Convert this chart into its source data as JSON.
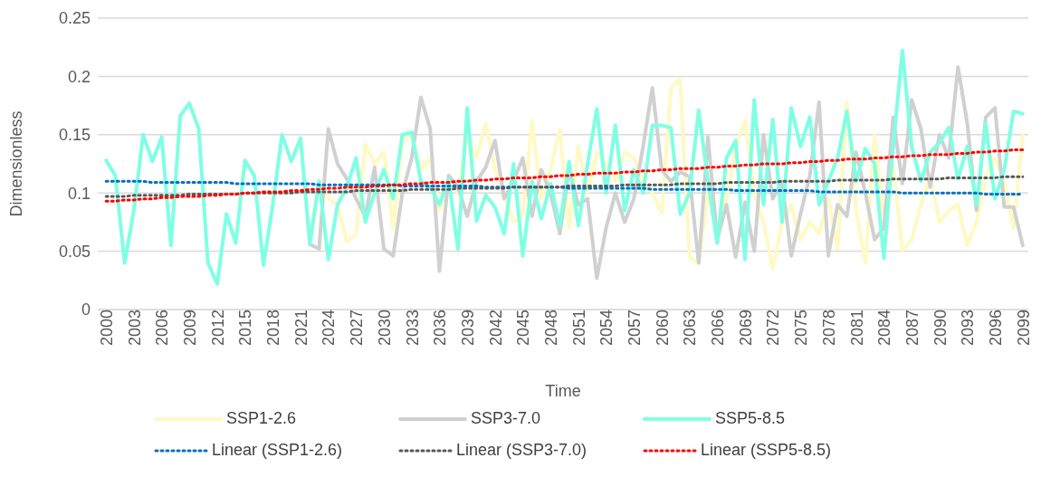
{
  "chart_data": {
    "type": "line",
    "xlabel": "Time",
    "ylabel": "Dimensionless",
    "x": [
      2000,
      2001,
      2002,
      2003,
      2004,
      2005,
      2006,
      2007,
      2008,
      2009,
      2010,
      2011,
      2012,
      2013,
      2014,
      2015,
      2016,
      2017,
      2018,
      2019,
      2020,
      2021,
      2022,
      2023,
      2024,
      2025,
      2026,
      2027,
      2028,
      2029,
      2030,
      2031,
      2032,
      2033,
      2034,
      2035,
      2036,
      2037,
      2038,
      2039,
      2040,
      2041,
      2042,
      2043,
      2044,
      2045,
      2046,
      2047,
      2048,
      2049,
      2050,
      2051,
      2052,
      2053,
      2054,
      2055,
      2056,
      2057,
      2058,
      2059,
      2060,
      2061,
      2062,
      2063,
      2064,
      2065,
      2066,
      2067,
      2068,
      2069,
      2070,
      2071,
      2072,
      2073,
      2074,
      2075,
      2076,
      2077,
      2078,
      2079,
      2080,
      2081,
      2082,
      2083,
      2084,
      2085,
      2086,
      2087,
      2088,
      2089,
      2090,
      2091,
      2092,
      2093,
      2094,
      2095,
      2096,
      2097,
      2098,
      2099
    ],
    "xlim": [
      1999.1,
      2099.6
    ],
    "xticks": [
      2000,
      2003,
      2006,
      2009,
      2012,
      2015,
      2018,
      2021,
      2024,
      2027,
      2030,
      2033,
      2036,
      2039,
      2042,
      2045,
      2048,
      2051,
      2054,
      2057,
      2060,
      2063,
      2066,
      2069,
      2072,
      2075,
      2078,
      2081,
      2084,
      2087,
      2090,
      2093,
      2096,
      2099
    ],
    "ylim": [
      0,
      0.25
    ],
    "yticks": [
      0,
      0.05,
      0.1,
      0.15,
      0.2,
      0.25
    ],
    "grid": "y",
    "legend": "bottom",
    "marker": "none",
    "series": [
      {
        "name": "SSP1-2.6",
        "color": "#fff9c4",
        "line_style": "solid",
        "values": [
          null,
          null,
          null,
          null,
          null,
          null,
          null,
          null,
          null,
          null,
          null,
          null,
          null,
          null,
          null,
          null,
          null,
          null,
          null,
          null,
          null,
          null,
          0.056,
          0.11,
          0.095,
          0.09,
          0.058,
          0.065,
          0.142,
          0.125,
          0.135,
          0.07,
          0.145,
          0.15,
          0.12,
          0.13,
          0.085,
          0.11,
          0.1,
          0.15,
          0.13,
          0.16,
          0.12,
          0.1,
          0.075,
          0.08,
          0.162,
          0.095,
          0.12,
          0.155,
          0.07,
          0.14,
          0.1,
          0.135,
          0.125,
          0.11,
          0.135,
          0.13,
          0.11,
          0.1,
          0.083,
          0.19,
          0.198,
          0.045,
          0.04,
          0.1,
          0.068,
          0.095,
          0.14,
          0.162,
          0.1,
          0.075,
          0.035,
          0.075,
          0.09,
          0.06,
          0.075,
          0.065,
          0.095,
          0.052,
          0.178,
          0.085,
          0.04,
          0.15,
          0.08,
          0.125,
          0.05,
          0.06,
          0.09,
          0.115,
          0.075,
          0.085,
          0.09,
          0.055,
          0.075,
          0.115,
          0.13,
          0.11,
          0.07,
          0.15
        ]
      },
      {
        "name": "SSP3-7.0",
        "color": "#d0d0d0",
        "line_style": "solid",
        "values": [
          null,
          null,
          null,
          null,
          null,
          null,
          null,
          null,
          null,
          null,
          null,
          null,
          null,
          null,
          null,
          null,
          null,
          null,
          null,
          null,
          null,
          null,
          0.056,
          0.052,
          0.155,
          0.125,
          0.112,
          0.095,
          0.08,
          0.122,
          0.052,
          0.046,
          0.1,
          0.13,
          0.182,
          0.155,
          0.033,
          0.115,
          0.105,
          0.08,
          0.11,
          0.122,
          0.145,
          0.095,
          0.11,
          0.13,
          0.08,
          0.12,
          0.1,
          0.065,
          0.12,
          0.09,
          0.095,
          0.027,
          0.07,
          0.1,
          0.075,
          0.095,
          0.14,
          0.19,
          0.12,
          0.11,
          0.118,
          0.114,
          0.04,
          0.148,
          0.06,
          0.09,
          0.045,
          0.092,
          0.05,
          0.15,
          0.095,
          0.11,
          0.046,
          0.082,
          0.115,
          0.178,
          0.046,
          0.09,
          0.08,
          0.135,
          0.1,
          0.06,
          0.07,
          0.165,
          0.108,
          0.18,
          0.155,
          0.105,
          0.15,
          0.13,
          0.208,
          0.16,
          0.085,
          0.165,
          0.173,
          0.088,
          0.088,
          0.055
        ]
      },
      {
        "name": "SSP5-8.5",
        "color": "#7fffe4",
        "line_style": "solid",
        "values": [
          0.128,
          0.115,
          0.04,
          0.085,
          0.15,
          0.127,
          0.148,
          0.055,
          0.166,
          0.177,
          0.155,
          0.04,
          0.022,
          0.082,
          0.057,
          0.128,
          0.115,
          0.038,
          0.09,
          0.15,
          0.127,
          0.147,
          0.056,
          0.11,
          0.043,
          0.09,
          0.105,
          0.13,
          0.075,
          0.1,
          0.12,
          0.095,
          0.15,
          0.152,
          0.11,
          0.105,
          0.09,
          0.112,
          0.052,
          0.173,
          0.076,
          0.098,
          0.088,
          0.065,
          0.125,
          0.046,
          0.11,
          0.078,
          0.108,
          0.072,
          0.127,
          0.072,
          0.125,
          0.172,
          0.1,
          0.158,
          0.085,
          0.12,
          0.1,
          0.158,
          0.158,
          0.156,
          0.082,
          0.1,
          0.171,
          0.11,
          0.057,
          0.13,
          0.145,
          0.043,
          0.18,
          0.09,
          0.163,
          0.075,
          0.173,
          0.14,
          0.165,
          0.09,
          0.11,
          0.13,
          0.17,
          0.11,
          0.138,
          0.125,
          0.044,
          0.14,
          0.222,
          0.14,
          0.11,
          0.135,
          0.143,
          0.156,
          0.112,
          0.14,
          0.09,
          0.16,
          0.095,
          0.12,
          0.17,
          0.168
        ]
      },
      {
        "name": "Linear (SSP1-2.6)",
        "color": "#0070c0",
        "line_style": "dotted",
        "values": [
          0.11,
          0.11,
          0.11,
          0.11,
          0.11,
          0.109,
          0.109,
          0.109,
          0.109,
          0.109,
          0.109,
          0.109,
          0.109,
          0.109,
          0.108,
          0.108,
          0.108,
          0.108,
          0.108,
          0.108,
          0.108,
          0.108,
          0.108,
          0.107,
          0.107,
          0.107,
          0.107,
          0.107,
          0.107,
          0.107,
          0.107,
          0.107,
          0.106,
          0.106,
          0.106,
          0.106,
          0.106,
          0.106,
          0.106,
          0.106,
          0.106,
          0.105,
          0.105,
          0.105,
          0.105,
          0.105,
          0.105,
          0.105,
          0.105,
          0.105,
          0.104,
          0.104,
          0.104,
          0.104,
          0.104,
          0.104,
          0.104,
          0.104,
          0.104,
          0.103,
          0.103,
          0.103,
          0.103,
          0.103,
          0.103,
          0.103,
          0.103,
          0.103,
          0.102,
          0.102,
          0.102,
          0.102,
          0.102,
          0.102,
          0.102,
          0.102,
          0.102,
          0.101,
          0.101,
          0.101,
          0.101,
          0.101,
          0.101,
          0.101,
          0.101,
          0.101,
          0.1,
          0.1,
          0.1,
          0.1,
          0.1,
          0.1,
          0.1,
          0.1,
          0.1,
          0.099,
          0.099,
          0.099,
          0.099,
          0.099
        ]
      },
      {
        "name": "Linear (SSP3-7.0)",
        "color": "#595959",
        "line_style": "dotted",
        "values": [
          0.097,
          0.097,
          0.097,
          0.098,
          0.098,
          0.098,
          0.098,
          0.098,
          0.098,
          0.099,
          0.099,
          0.099,
          0.099,
          0.099,
          0.099,
          0.1,
          0.1,
          0.1,
          0.1,
          0.1,
          0.1,
          0.101,
          0.101,
          0.101,
          0.101,
          0.101,
          0.101,
          0.102,
          0.102,
          0.102,
          0.102,
          0.102,
          0.102,
          0.103,
          0.103,
          0.103,
          0.103,
          0.103,
          0.104,
          0.104,
          0.104,
          0.104,
          0.104,
          0.104,
          0.105,
          0.105,
          0.105,
          0.105,
          0.105,
          0.105,
          0.106,
          0.106,
          0.106,
          0.106,
          0.106,
          0.106,
          0.107,
          0.107,
          0.107,
          0.107,
          0.107,
          0.107,
          0.108,
          0.108,
          0.108,
          0.108,
          0.108,
          0.109,
          0.109,
          0.109,
          0.109,
          0.109,
          0.109,
          0.11,
          0.11,
          0.11,
          0.11,
          0.11,
          0.11,
          0.111,
          0.111,
          0.111,
          0.111,
          0.111,
          0.111,
          0.112,
          0.112,
          0.112,
          0.112,
          0.112,
          0.112,
          0.113,
          0.113,
          0.113,
          0.113,
          0.113,
          0.113,
          0.114,
          0.114,
          0.114
        ]
      },
      {
        "name": "Linear (SSP5-8.5)",
        "color": "#ff0000",
        "line_style": "dotted",
        "values": [
          0.093,
          0.093,
          0.094,
          0.094,
          0.095,
          0.095,
          0.096,
          0.096,
          0.097,
          0.097,
          0.097,
          0.098,
          0.098,
          0.099,
          0.099,
          0.1,
          0.1,
          0.101,
          0.101,
          0.101,
          0.102,
          0.102,
          0.103,
          0.103,
          0.104,
          0.104,
          0.105,
          0.105,
          0.105,
          0.106,
          0.106,
          0.107,
          0.107,
          0.108,
          0.108,
          0.109,
          0.109,
          0.109,
          0.11,
          0.11,
          0.111,
          0.111,
          0.112,
          0.112,
          0.113,
          0.113,
          0.113,
          0.114,
          0.114,
          0.115,
          0.115,
          0.116,
          0.116,
          0.117,
          0.117,
          0.117,
          0.118,
          0.118,
          0.119,
          0.119,
          0.12,
          0.12,
          0.121,
          0.121,
          0.121,
          0.122,
          0.122,
          0.123,
          0.123,
          0.124,
          0.124,
          0.125,
          0.125,
          0.125,
          0.126,
          0.126,
          0.127,
          0.127,
          0.128,
          0.128,
          0.129,
          0.129,
          0.129,
          0.13,
          0.13,
          0.131,
          0.131,
          0.132,
          0.132,
          0.133,
          0.133,
          0.133,
          0.134,
          0.134,
          0.135,
          0.135,
          0.136,
          0.136,
          0.137,
          0.137
        ]
      }
    ]
  }
}
